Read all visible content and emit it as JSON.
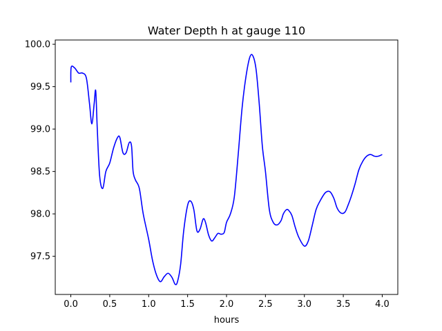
{
  "chart_data": {
    "type": "line",
    "title": "Water Depth h at gauge 110",
    "xlabel": "hours",
    "ylabel": "",
    "xlim": [
      -0.2,
      4.2
    ],
    "ylim": [
      97.05,
      100.05
    ],
    "xticks": [
      0.0,
      0.5,
      1.0,
      1.5,
      2.0,
      2.5,
      3.0,
      3.5,
      4.0
    ],
    "xtick_labels": [
      "0.0",
      "0.5",
      "1.0",
      "1.5",
      "2.0",
      "2.5",
      "3.0",
      "3.5",
      "4.0"
    ],
    "yticks": [
      97.5,
      98.0,
      98.5,
      99.0,
      99.5,
      100.0
    ],
    "ytick_labels": [
      "97.5",
      "98.0",
      "98.5",
      "99.0",
      "99.5",
      "100.0"
    ],
    "grid": false,
    "line_color": "#0000ff",
    "series": [
      {
        "x": [
          0.0,
          0.005,
          0.05,
          0.1,
          0.15,
          0.2,
          0.24,
          0.27,
          0.3,
          0.32,
          0.34,
          0.37,
          0.41,
          0.45,
          0.5,
          0.55,
          0.6,
          0.63,
          0.67,
          0.71,
          0.75,
          0.78,
          0.8,
          0.83,
          0.88,
          0.93,
          1.0,
          1.05,
          1.1,
          1.15,
          1.2,
          1.25,
          1.3,
          1.34,
          1.37,
          1.41,
          1.45,
          1.5,
          1.54,
          1.58,
          1.62,
          1.66,
          1.7,
          1.73,
          1.77,
          1.81,
          1.85,
          1.89,
          1.93,
          1.97,
          2.0,
          2.05,
          2.1,
          2.15,
          2.2,
          2.25,
          2.3,
          2.34,
          2.38,
          2.42,
          2.46,
          2.5,
          2.55,
          2.6,
          2.65,
          2.7,
          2.73,
          2.77,
          2.8,
          2.84,
          2.88,
          2.93,
          3.0,
          3.05,
          3.1,
          3.15,
          3.2,
          3.27,
          3.33,
          3.38,
          3.42,
          3.47,
          3.52,
          3.56,
          3.6,
          3.65,
          3.7,
          3.75,
          3.8,
          3.85,
          3.9,
          3.95,
          4.0
        ],
        "y": [
          99.55,
          99.73,
          99.72,
          99.66,
          99.66,
          99.6,
          99.3,
          99.06,
          99.3,
          99.45,
          99.0,
          98.45,
          98.3,
          98.5,
          98.6,
          98.78,
          98.9,
          98.9,
          98.72,
          98.72,
          98.84,
          98.8,
          98.5,
          98.4,
          98.3,
          98.0,
          97.7,
          97.45,
          97.28,
          97.2,
          97.26,
          97.3,
          97.25,
          97.17,
          97.2,
          97.4,
          97.8,
          98.1,
          98.15,
          98.05,
          97.8,
          97.82,
          97.94,
          97.9,
          97.75,
          97.68,
          97.72,
          97.77,
          97.76,
          97.78,
          97.9,
          98.0,
          98.2,
          98.7,
          99.25,
          99.62,
          99.85,
          99.86,
          99.7,
          99.3,
          98.8,
          98.5,
          98.05,
          97.9,
          97.87,
          97.92,
          98.0,
          98.05,
          98.04,
          97.98,
          97.85,
          97.72,
          97.62,
          97.68,
          97.86,
          98.05,
          98.15,
          98.25,
          98.26,
          98.18,
          98.07,
          98.01,
          98.02,
          98.1,
          98.2,
          98.35,
          98.52,
          98.62,
          98.68,
          98.7,
          98.68,
          98.68,
          98.7
        ]
      }
    ]
  }
}
